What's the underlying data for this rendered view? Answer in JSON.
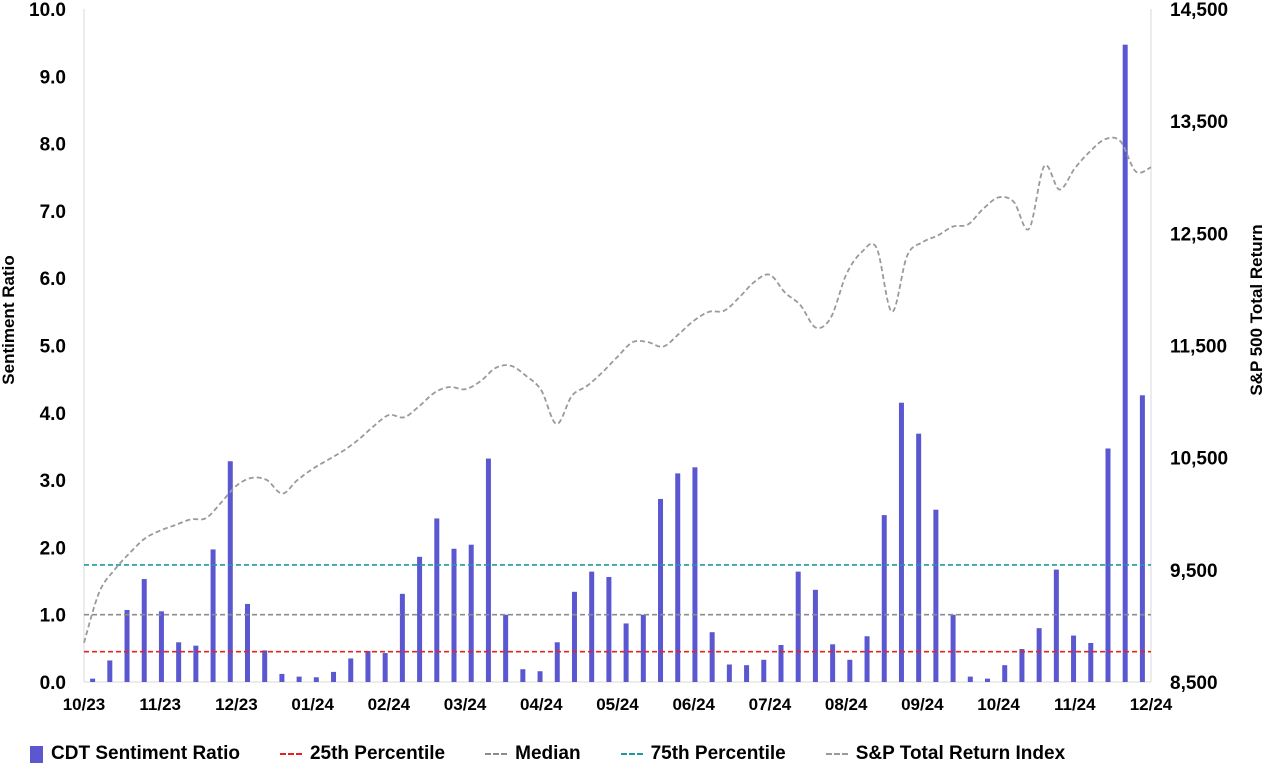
{
  "chart_data": {
    "type": "bar",
    "ylabel": "Sentiment Ratio",
    "y2label": "S&P 500  Total Return",
    "ylim": [
      0,
      10
    ],
    "y2lim": [
      8500,
      14500
    ],
    "yticks": [
      "0.0",
      "1.0",
      "2.0",
      "3.0",
      "4.0",
      "5.0",
      "6.0",
      "7.0",
      "8.0",
      "9.0",
      "10.0"
    ],
    "y2ticks": [
      "8,500",
      "9,500",
      "10,500",
      "11,500",
      "12,500",
      "13,500",
      "14,500"
    ],
    "xticks": [
      "10/23",
      "11/23",
      "12/23",
      "01/24",
      "02/24",
      "03/24",
      "04/24",
      "05/24",
      "06/24",
      "07/24",
      "08/24",
      "09/24",
      "10/24",
      "11/24",
      "12/24"
    ],
    "legend_position": "bottom",
    "colors": {
      "bars": "#5b57d1",
      "p25": "#e8231f",
      "median": "#8c8c8c",
      "p75": "#1a9c9c",
      "sp": "#9a9a9a"
    },
    "series": [
      {
        "name": "CDT Sentiment Ratio",
        "type": "bar",
        "values": [
          0.05,
          0.32,
          1.07,
          1.53,
          1.05,
          0.59,
          0.54,
          1.97,
          3.28,
          1.16,
          0.47,
          0.12,
          0.08,
          0.07,
          0.15,
          0.35,
          0.46,
          0.43,
          1.31,
          1.86,
          2.43,
          1.98,
          2.04,
          3.32,
          1.0,
          0.19,
          0.16,
          0.59,
          1.34,
          1.64,
          1.56,
          0.87,
          1.0,
          2.72,
          3.1,
          3.19,
          0.74,
          0.26,
          0.25,
          0.33,
          0.55,
          1.64,
          1.37,
          0.56,
          0.33,
          0.68,
          2.48,
          4.15,
          3.69,
          2.56,
          1.0,
          0.08,
          0.05,
          0.25,
          0.49,
          0.8,
          1.67,
          0.69,
          0.58,
          3.47,
          9.47,
          4.26
        ]
      },
      {
        "name": "25th Percentile",
        "type": "hline",
        "value": 0.45
      },
      {
        "name": "Median",
        "type": "hline",
        "value": 1.0
      },
      {
        "name": "75th Percentile",
        "type": "hline",
        "value": 1.74
      },
      {
        "name": "S&P Total Return Index",
        "type": "line",
        "axis": "right",
        "values": [
          8850,
          9300,
          9500,
          9650,
          9780,
          9850,
          9900,
          9950,
          9960,
          10100,
          10250,
          10320,
          10300,
          10180,
          10300,
          10400,
          10480,
          10560,
          10660,
          10780,
          10880,
          10860,
          10960,
          11080,
          11130,
          11110,
          11180,
          11300,
          11320,
          11230,
          11100,
          10800,
          11050,
          11140,
          11260,
          11400,
          11530,
          11530,
          11490,
          11600,
          11720,
          11800,
          11810,
          11930,
          12070,
          12130,
          11970,
          11860,
          11660,
          11750,
          12130,
          12330,
          12370,
          11800,
          12300,
          12420,
          12480,
          12560,
          12580,
          12720,
          12820,
          12780,
          12540,
          13100,
          12890,
          13080,
          13230,
          13340,
          13320,
          13050,
          13090
        ]
      }
    ]
  }
}
